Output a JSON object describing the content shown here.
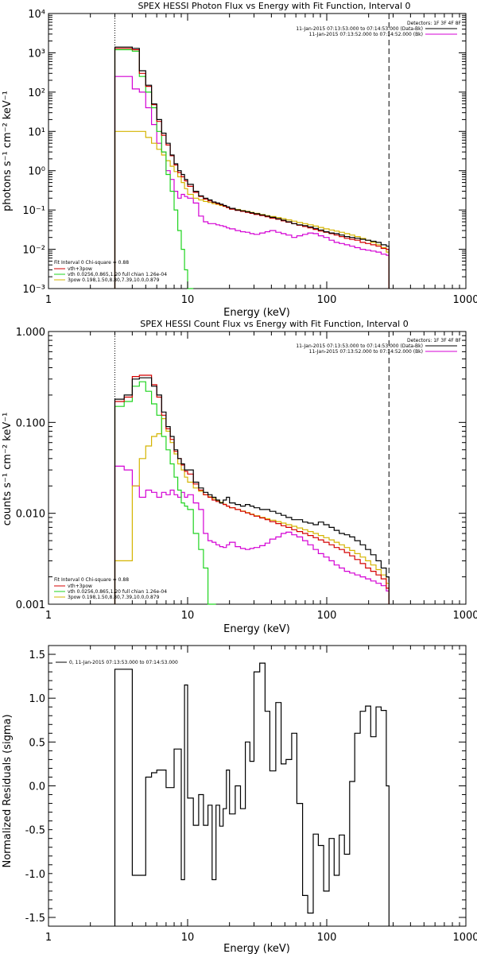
{
  "colors": {
    "total": "#000000",
    "fit": "#d40000",
    "vth": "#1fd41f",
    "pow": "#d4b400",
    "bk": "#d400d4",
    "edge": "#ff8c00"
  },
  "chart_data": [
    {
      "type": "line",
      "title": "SPEX HESSI Photon Flux vs Energy with Fit Function, Interval 0",
      "xlabel": "Energy (keV)",
      "ylabel": "photons s⁻¹ cm⁻² keV⁻¹",
      "xscale": "log",
      "yscale": "log",
      "xlim": [
        1,
        1000
      ],
      "ylim": [
        0.001,
        10000
      ],
      "x_ticks": [
        "1",
        "10",
        "100",
        "1000"
      ],
      "y_ticks": [
        "10⁻³",
        "10⁻²",
        "10⁻¹",
        "10⁰",
        "10¹",
        "10²",
        "10³",
        "10⁴"
      ],
      "fit_range": [
        3,
        280
      ],
      "legend_right": [
        "Detectors: 1F 3F 4F 8F",
        "11-Jan-2015 07:13:53.000 to 07:14:53.000 (Data-Bk)",
        "11-Jan-2015 07:13:52.000 to 07:14:52.000 (Bk)"
      ],
      "legend_left": [
        "Fit Interval 0  Chi-square = 0.88",
        "vth+3pow",
        "vth 0.0256,0.865,1.20  full chian 1.26e-04",
        "3pow 0.198,1.50,8.80,7.39,10.0,0.879"
      ],
      "edges": [
        3,
        3.5,
        4,
        4.5,
        5,
        5.5,
        6,
        6.5,
        7,
        7.5,
        8,
        8.5,
        9,
        9.5,
        10,
        11,
        12,
        13,
        14,
        15,
        16,
        17,
        18,
        19,
        20,
        22,
        24,
        26,
        28,
        30,
        33,
        36,
        39,
        43,
        47,
        51,
        56,
        61,
        67,
        73,
        80,
        87,
        95,
        104,
        113,
        123,
        134,
        146,
        159,
        174,
        190,
        207,
        226,
        246,
        268,
        280
      ],
      "series": [
        {
          "key": "total",
          "values": [
            1400,
            1400,
            1300,
            350,
            150,
            50,
            20,
            9,
            5,
            2.5,
            1.5,
            1,
            0.8,
            0.6,
            0.45,
            0.3,
            0.23,
            0.2,
            0.18,
            0.16,
            0.15,
            0.14,
            0.13,
            0.12,
            0.11,
            0.1,
            0.095,
            0.09,
            0.085,
            0.08,
            0.075,
            0.07,
            0.065,
            0.06,
            0.055,
            0.05,
            0.045,
            0.042,
            0.04,
            0.037,
            0.034,
            0.031,
            0.028,
            0.026,
            0.025,
            0.023,
            0.021,
            0.02,
            0.019,
            0.018,
            0.017,
            0.016,
            0.015,
            0.013,
            0.012
          ]
        },
        {
          "key": "fit",
          "values": [
            1300,
            1300,
            1200,
            300,
            140,
            48,
            18,
            8,
            4.5,
            2.4,
            1.4,
            0.9,
            0.7,
            0.55,
            0.4,
            0.28,
            0.22,
            0.19,
            0.17,
            0.155,
            0.145,
            0.135,
            0.125,
            0.115,
            0.105,
            0.098,
            0.092,
            0.087,
            0.082,
            0.077,
            0.072,
            0.067,
            0.062,
            0.058,
            0.053,
            0.049,
            0.045,
            0.041,
            0.038,
            0.035,
            0.032,
            0.029,
            0.027,
            0.025,
            0.023,
            0.021,
            0.019,
            0.018,
            0.017,
            0.015,
            0.014,
            0.013,
            0.012,
            0.0105,
            0.01
          ]
        },
        {
          "key": "vth",
          "values": [
            1200,
            1200,
            1100,
            250,
            100,
            40,
            10,
            3,
            0.8,
            0.3,
            0.1,
            0.03,
            0.01,
            0.003,
            0.0008
          ]
        },
        {
          "key": "pow",
          "values": [
            10,
            10,
            10,
            10,
            7,
            5,
            3.5,
            2.5,
            1.8,
            1.3,
            0.95,
            0.7,
            0.5,
            0.35,
            0.25,
            0.2,
            0.18,
            0.165,
            0.155,
            0.145,
            0.138,
            0.13,
            0.123,
            0.116,
            0.11,
            0.103,
            0.097,
            0.092,
            0.087,
            0.082,
            0.077,
            0.072,
            0.068,
            0.064,
            0.06,
            0.056,
            0.052,
            0.048,
            0.045,
            0.042,
            0.039,
            0.036,
            0.033,
            0.031,
            0.029,
            0.027,
            0.025,
            0.023,
            0.021,
            0.019,
            0.017,
            0.015,
            0.013,
            0.011,
            0.0085
          ]
        },
        {
          "key": "bk",
          "values": [
            250,
            250,
            120,
            100,
            40,
            15,
            5,
            3,
            1,
            0.6,
            0.3,
            0.2,
            0.25,
            0.22,
            0.2,
            0.15,
            0.07,
            0.05,
            0.045,
            0.045,
            0.042,
            0.04,
            0.038,
            0.035,
            0.033,
            0.03,
            0.028,
            0.027,
            0.025,
            0.024,
            0.026,
            0.028,
            0.03,
            0.027,
            0.025,
            0.023,
            0.02,
            0.022,
            0.024,
            0.026,
            0.025,
            0.022,
            0.02,
            0.017,
            0.015,
            0.014,
            0.013,
            0.012,
            0.011,
            0.01,
            0.0095,
            0.009,
            0.0085,
            0.0075,
            0.007
          ]
        }
      ]
    },
    {
      "type": "line",
      "title": "SPEX HESSI Count Flux vs Energy with Fit Function, Interval 0",
      "xlabel": "Energy (keV)",
      "ylabel": "counts s⁻¹ cm⁻² keV⁻¹",
      "xscale": "log",
      "yscale": "log",
      "xlim": [
        1,
        1000
      ],
      "ylim": [
        0.001,
        1.0
      ],
      "x_ticks": [
        "1",
        "10",
        "100",
        "1000"
      ],
      "y_ticks": [
        "0.001",
        "0.010",
        "0.100",
        "1.000"
      ],
      "fit_range": [
        3,
        280
      ],
      "legend_right": [
        "Detectors: 1F 3F 4F 8F",
        "11-Jan-2015 07:13:53.000 to 07:14:53.000 (Data-Bk)",
        "11-Jan-2015 07:13:52.000 to 07:14:52.000 (Bk)"
      ],
      "legend_left": [
        "Fit Interval 0  Chi-square = 0.88",
        "vth+3pow",
        "vth 0.0256,0.865,1.20  full chian 1.26e-04",
        "3pow 0.198,1.50,8.80,7.39,10.0,0.879"
      ],
      "edges": [
        3,
        3.5,
        4,
        4.5,
        5,
        5.5,
        6,
        6.5,
        7,
        7.5,
        8,
        8.5,
        9,
        9.5,
        10,
        11,
        12,
        13,
        14,
        15,
        16,
        17,
        18,
        19,
        20,
        22,
        24,
        26,
        28,
        30,
        33,
        36,
        39,
        43,
        47,
        51,
        56,
        61,
        67,
        73,
        80,
        87,
        95,
        104,
        113,
        123,
        134,
        146,
        159,
        174,
        190,
        207,
        226,
        246,
        268,
        280
      ],
      "series": [
        {
          "key": "total",
          "values": [
            0.18,
            0.2,
            0.3,
            0.31,
            0.31,
            0.25,
            0.2,
            0.13,
            0.09,
            0.07,
            0.05,
            0.04,
            0.035,
            0.03,
            0.03,
            0.022,
            0.019,
            0.017,
            0.016,
            0.015,
            0.014,
            0.013,
            0.014,
            0.015,
            0.013,
            0.0125,
            0.012,
            0.0125,
            0.012,
            0.0115,
            0.011,
            0.011,
            0.0105,
            0.01,
            0.0095,
            0.009,
            0.0085,
            0.0085,
            0.008,
            0.0078,
            0.0075,
            0.008,
            0.0075,
            0.007,
            0.0065,
            0.006,
            0.0058,
            0.0055,
            0.005,
            0.0045,
            0.004,
            0.0035,
            0.003,
            0.0025,
            0.002
          ]
        },
        {
          "key": "fit",
          "values": [
            0.17,
            0.19,
            0.32,
            0.33,
            0.33,
            0.26,
            0.19,
            0.12,
            0.085,
            0.065,
            0.048,
            0.04,
            0.034,
            0.029,
            0.027,
            0.021,
            0.018,
            0.016,
            0.015,
            0.014,
            0.0135,
            0.013,
            0.0125,
            0.012,
            0.0115,
            0.011,
            0.0105,
            0.0101,
            0.0097,
            0.0093,
            0.0089,
            0.0085,
            0.0081,
            0.0077,
            0.0073,
            0.007,
            0.0066,
            0.0063,
            0.006,
            0.0057,
            0.0054,
            0.0051,
            0.0048,
            0.0045,
            0.0042,
            0.004,
            0.0037,
            0.0034,
            0.0031,
            0.0028,
            0.0025,
            0.0023,
            0.0021,
            0.0019,
            0.0015
          ]
        },
        {
          "key": "vth",
          "values": [
            0.15,
            0.17,
            0.25,
            0.28,
            0.22,
            0.16,
            0.12,
            0.07,
            0.05,
            0.035,
            0.025,
            0.018,
            0.013,
            0.012,
            0.011,
            0.006,
            0.004,
            0.0025,
            0.001,
            0.0005
          ]
        },
        {
          "key": "pow",
          "values": [
            0.003,
            0.003,
            0.02,
            0.04,
            0.055,
            0.07,
            0.075,
            0.11,
            0.08,
            0.06,
            0.045,
            0.035,
            0.03,
            0.025,
            0.022,
            0.019,
            0.0175,
            0.016,
            0.0152,
            0.0145,
            0.0138,
            0.0132,
            0.0126,
            0.012,
            0.0115,
            0.011,
            0.0106,
            0.0102,
            0.0098,
            0.0094,
            0.009,
            0.0087,
            0.0084,
            0.0081,
            0.0078,
            0.0075,
            0.0072,
            0.0069,
            0.0066,
            0.0063,
            0.006,
            0.0057,
            0.0054,
            0.0051,
            0.0048,
            0.0045,
            0.0042,
            0.0039,
            0.0036,
            0.0033,
            0.003,
            0.0027,
            0.0024,
            0.0021,
            0.0017
          ]
        },
        {
          "key": "bk",
          "values": [
            0.033,
            0.03,
            0.02,
            0.015,
            0.018,
            0.017,
            0.015,
            0.017,
            0.016,
            0.018,
            0.016,
            0.015,
            0.017,
            0.015,
            0.016,
            0.013,
            0.011,
            0.006,
            0.005,
            0.0048,
            0.0045,
            0.0043,
            0.0042,
            0.0045,
            0.0048,
            0.0043,
            0.0041,
            0.004,
            0.0041,
            0.0042,
            0.0044,
            0.0047,
            0.0052,
            0.0055,
            0.006,
            0.0062,
            0.0058,
            0.0055,
            0.005,
            0.0045,
            0.004,
            0.0036,
            0.0033,
            0.003,
            0.0027,
            0.0025,
            0.0023,
            0.0022,
            0.0021,
            0.002,
            0.0019,
            0.0018,
            0.0017,
            0.0016,
            0.0014
          ]
        }
      ]
    },
    {
      "type": "line",
      "title": "",
      "xlabel": "Energy (keV)",
      "ylabel": "Normalized Residuals (sigma)",
      "xscale": "log",
      "yscale": "linear",
      "xlim": [
        1,
        1000
      ],
      "ylim": [
        -1.6,
        1.6
      ],
      "x_ticks": [
        "1",
        "10",
        "100",
        "1000"
      ],
      "y_ticks": [
        "-1.5",
        "-1.0",
        "-0.5",
        "0.0",
        "0.5",
        "1.0",
        "1.5"
      ],
      "legend_right": [],
      "legend_left": [
        "0, 11-Jan-2015 07:13:53.000 to 07:14:53.000"
      ],
      "edges": [
        3,
        4,
        5,
        5.5,
        6,
        7,
        8,
        9,
        9.5,
        10,
        11,
        12,
        13,
        14,
        15,
        16,
        17,
        18,
        19,
        20,
        22,
        24,
        26,
        28,
        30,
        33,
        36,
        39,
        43,
        47,
        51,
        56,
        61,
        67,
        73,
        80,
        87,
        95,
        104,
        113,
        123,
        134,
        146,
        159,
        174,
        190,
        207,
        226,
        246,
        268,
        280
      ],
      "series": [
        {
          "key": "total",
          "values": [
            1.33,
            -1.02,
            0.1,
            0.15,
            0.18,
            -0.02,
            0.42,
            -1.07,
            1.15,
            -0.14,
            -0.45,
            -0.1,
            -0.45,
            -0.22,
            -1.07,
            -0.22,
            -0.46,
            -0.26,
            0.18,
            -0.32,
            0.0,
            -0.26,
            0.5,
            0.28,
            1.3,
            1.4,
            0.85,
            0.17,
            0.95,
            0.25,
            0.3,
            0.6,
            -0.2,
            -1.25,
            -1.45,
            -0.55,
            -0.68,
            -1.2,
            -0.6,
            -1.02,
            -0.56,
            -0.78,
            0.05,
            0.6,
            0.85,
            0.91,
            0.56,
            0.9,
            0.86,
            0.0
          ]
        }
      ]
    }
  ]
}
